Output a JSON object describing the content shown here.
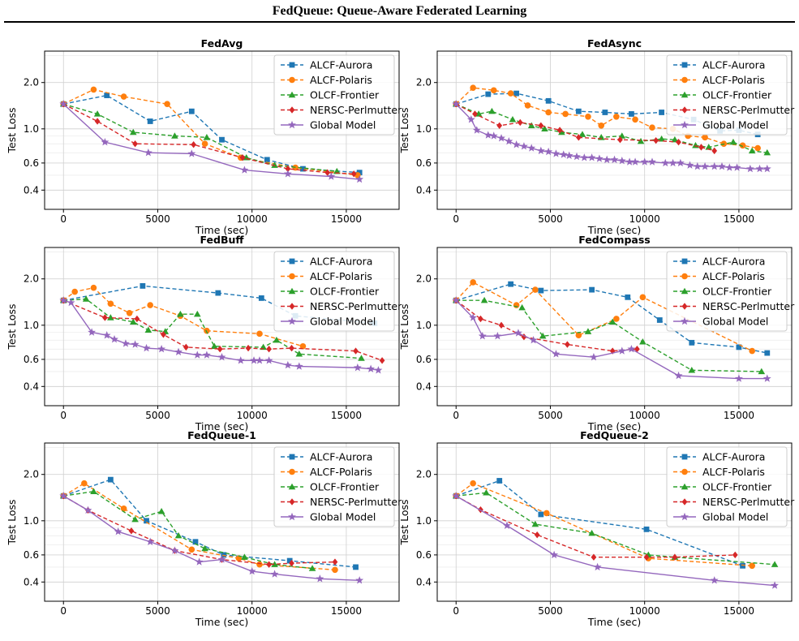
{
  "page": {
    "title": "FedQueue: Queue-Aware Federated Learning"
  },
  "caption": "",
  "legend_labels": [
    "ALCF-Aurora",
    "ALCF-Polaris",
    "OLCF-Frontier",
    "NERSC-Perlmutter",
    "Global Model"
  ],
  "series_style": [
    {
      "name": "ALCF-Aurora",
      "color": "#1f77b4",
      "marker": "square",
      "dash": true
    },
    {
      "name": "ALCF-Polaris",
      "color": "#ff7f0e",
      "marker": "circle",
      "dash": true
    },
    {
      "name": "OLCF-Frontier",
      "color": "#2ca02c",
      "marker": "triangle",
      "dash": true
    },
    {
      "name": "NERSC-Perlmutter",
      "color": "#d62728",
      "marker": "diamond",
      "dash": true
    },
    {
      "name": "Global Model",
      "color": "#9467bd",
      "marker": "star",
      "dash": false
    }
  ],
  "chart_data": [
    {
      "type": "line",
      "title": "FedAvg",
      "xlabel": "Time (sec)",
      "ylabel": "Test Loss",
      "xlim": [
        -1000,
        17800
      ],
      "ylim": [
        0.3,
        3.2
      ],
      "yscale": "log",
      "xticks": [
        0,
        5000,
        10000,
        15000
      ],
      "yticks": [
        0.4,
        0.6,
        1.0,
        2.0
      ],
      "ytick_labels": [
        "0.4",
        "0.6",
        "1.0",
        "2.0"
      ],
      "grid": true,
      "legend": "top-right",
      "series": [
        {
          "name": "ALCF-Aurora",
          "x": [
            0,
            2300,
            4600,
            6800,
            8400,
            10800,
            12700,
            15700
          ],
          "y": [
            1.45,
            1.65,
            1.12,
            1.3,
            0.85,
            0.63,
            0.55,
            0.52
          ]
        },
        {
          "name": "ALCF-Polaris",
          "x": [
            0,
            1600,
            3200,
            5500,
            7500,
            9400,
            12300,
            15600
          ],
          "y": [
            1.45,
            1.8,
            1.62,
            1.45,
            0.8,
            0.65,
            0.56,
            0.5
          ]
        },
        {
          "name": "OLCF-Frontier",
          "x": [
            0,
            1800,
            3700,
            5900,
            7600,
            9700,
            11200,
            14500
          ],
          "y": [
            1.45,
            1.25,
            0.95,
            0.9,
            0.88,
            0.65,
            0.58,
            0.53
          ]
        },
        {
          "name": "NERSC-Perlmutter",
          "x": [
            0,
            1800,
            3800,
            6900,
            9500,
            11900,
            14000,
            15400
          ],
          "y": [
            1.45,
            1.12,
            0.8,
            0.79,
            0.65,
            0.55,
            0.52,
            0.51
          ]
        },
        {
          "name": "Global Model",
          "x": [
            0,
            2200,
            4500,
            6800,
            9600,
            11900,
            14200,
            15700
          ],
          "y": [
            1.45,
            0.82,
            0.7,
            0.69,
            0.54,
            0.51,
            0.49,
            0.47
          ]
        }
      ]
    },
    {
      "type": "line",
      "title": "FedAsync",
      "xlabel": "Time (sec)",
      "ylabel": "Test Loss",
      "xlim": [
        -1000,
        17800
      ],
      "ylim": [
        0.3,
        3.2
      ],
      "yscale": "log",
      "xticks": [
        0,
        5000,
        10000,
        15000
      ],
      "yticks": [
        0.4,
        0.6,
        1.0,
        2.0
      ],
      "ytick_labels": [
        "0.4",
        "0.6",
        "1.0",
        "2.0"
      ],
      "grid": true,
      "legend": "top-right",
      "series": [
        {
          "name": "ALCF-Aurora",
          "x": [
            0,
            1700,
            3200,
            4900,
            6500,
            7900,
            9300,
            10900,
            12600,
            14000,
            15000,
            16000
          ],
          "y": [
            1.45,
            1.68,
            1.7,
            1.52,
            1.3,
            1.28,
            1.25,
            1.28,
            1.15,
            0.97,
            0.98,
            0.92
          ]
        },
        {
          "name": "ALCF-Polaris",
          "x": [
            0,
            900,
            2000,
            2900,
            3800,
            4900,
            5800,
            7000,
            7700,
            8500,
            9500,
            10400,
            11500,
            12300,
            13200,
            14200,
            15200,
            16000
          ],
          "y": [
            1.45,
            1.85,
            1.78,
            1.7,
            1.42,
            1.28,
            1.25,
            1.2,
            1.05,
            1.2,
            1.15,
            1.02,
            1.0,
            0.9,
            0.88,
            0.8,
            0.78,
            0.75
          ]
        },
        {
          "name": "OLCF-Frontier",
          "x": [
            0,
            1200,
            1900,
            3000,
            4000,
            4700,
            5600,
            6700,
            7700,
            8800,
            9800,
            10900,
            11600,
            12700,
            13400,
            14700,
            15700,
            16500
          ],
          "y": [
            1.45,
            1.25,
            1.3,
            1.15,
            1.05,
            1.0,
            0.95,
            0.92,
            0.88,
            0.9,
            0.83,
            0.86,
            0.85,
            0.78,
            0.76,
            0.82,
            0.72,
            0.7
          ]
        },
        {
          "name": "NERSC-Perlmutter",
          "x": [
            0,
            1000,
            2300,
            3400,
            4500,
            5500,
            6500,
            8700,
            10600,
            11800,
            13000,
            13700
          ],
          "y": [
            1.45,
            1.25,
            1.05,
            1.1,
            1.05,
            0.98,
            0.88,
            0.85,
            0.84,
            0.82,
            0.76,
            0.72
          ]
        },
        {
          "name": "Global Model",
          "x": [
            0,
            800,
            1100,
            1700,
            2000,
            2400,
            2800,
            3200,
            3600,
            4000,
            4500,
            4900,
            5300,
            5700,
            6000,
            6400,
            6800,
            7200,
            7600,
            8000,
            8400,
            8800,
            9200,
            9500,
            10000,
            10400,
            11100,
            11500,
            11900,
            12400,
            12800,
            13200,
            13700,
            14100,
            14500,
            14900,
            15600,
            16100,
            16500
          ],
          "y": [
            1.45,
            1.15,
            0.98,
            0.91,
            0.9,
            0.87,
            0.83,
            0.79,
            0.77,
            0.75,
            0.72,
            0.71,
            0.69,
            0.68,
            0.67,
            0.66,
            0.65,
            0.65,
            0.64,
            0.63,
            0.63,
            0.62,
            0.61,
            0.61,
            0.61,
            0.61,
            0.6,
            0.6,
            0.6,
            0.58,
            0.57,
            0.57,
            0.57,
            0.57,
            0.56,
            0.56,
            0.55,
            0.55,
            0.55
          ]
        }
      ]
    },
    {
      "type": "line",
      "title": "FedBuff",
      "xlabel": "Time (sec)",
      "ylabel": "Test Loss",
      "xlim": [
        -1000,
        17800
      ],
      "ylim": [
        0.3,
        3.2
      ],
      "yscale": "log",
      "xticks": [
        0,
        5000,
        10000,
        15000
      ],
      "yticks": [
        0.4,
        0.6,
        1.0,
        2.0
      ],
      "ytick_labels": [
        "0.4",
        "0.6",
        "1.0",
        "2.0"
      ],
      "grid": true,
      "legend": "top-right",
      "series": [
        {
          "name": "ALCF-Aurora",
          "x": [
            0,
            4200,
            8200,
            10500,
            12300,
            16500
          ],
          "y": [
            1.45,
            1.8,
            1.62,
            1.5,
            1.15,
            1.03
          ]
        },
        {
          "name": "ALCF-Polaris",
          "x": [
            0,
            600,
            1600,
            2500,
            3500,
            4600,
            6200,
            7600,
            10400,
            12700
          ],
          "y": [
            1.45,
            1.65,
            1.75,
            1.38,
            1.2,
            1.35,
            1.15,
            0.92,
            0.88,
            0.73
          ]
        },
        {
          "name": "OLCF-Frontier",
          "x": [
            0,
            1200,
            2500,
            3700,
            4500,
            5400,
            6200,
            7100,
            8000,
            10600,
            11300,
            12500,
            15800
          ],
          "y": [
            1.45,
            1.48,
            1.12,
            1.05,
            0.93,
            0.91,
            1.18,
            1.18,
            0.73,
            0.72,
            0.8,
            0.65,
            0.61
          ]
        },
        {
          "name": "NERSC-Perlmutter",
          "x": [
            0,
            2200,
            3900,
            5300,
            6500,
            8300,
            9800,
            10900,
            12100,
            15500,
            16900
          ],
          "y": [
            1.45,
            1.12,
            1.1,
            0.87,
            0.72,
            0.7,
            0.71,
            0.7,
            0.71,
            0.68,
            0.59
          ]
        },
        {
          "name": "Global Model",
          "x": [
            0,
            400,
            1500,
            2300,
            2700,
            3300,
            3800,
            4400,
            5200,
            6100,
            7100,
            7600,
            8400,
            9400,
            10100,
            10400,
            10900,
            11900,
            12500,
            15600,
            16300,
            16700
          ],
          "y": [
            1.45,
            1.4,
            0.9,
            0.86,
            0.81,
            0.76,
            0.75,
            0.71,
            0.7,
            0.67,
            0.64,
            0.64,
            0.62,
            0.59,
            0.59,
            0.59,
            0.59,
            0.55,
            0.54,
            0.53,
            0.52,
            0.51
          ]
        }
      ]
    },
    {
      "type": "line",
      "title": "FedCompass",
      "xlabel": "Time (sec)",
      "ylabel": "Test Loss",
      "xlim": [
        -1000,
        17800
      ],
      "ylim": [
        0.3,
        3.2
      ],
      "yscale": "log",
      "xticks": [
        0,
        5000,
        10000,
        15000
      ],
      "yticks": [
        0.4,
        0.6,
        1.0,
        2.0
      ],
      "ytick_labels": [
        "0.4",
        "0.6",
        "1.0",
        "2.0"
      ],
      "grid": true,
      "legend": "top-right",
      "series": [
        {
          "name": "ALCF-Aurora",
          "x": [
            0,
            2900,
            4500,
            7200,
            9100,
            10800,
            12500,
            15000,
            16500
          ],
          "y": [
            1.45,
            1.85,
            1.68,
            1.7,
            1.52,
            1.08,
            0.77,
            0.72,
            0.66
          ]
        },
        {
          "name": "ALCF-Polaris",
          "x": [
            0,
            900,
            3200,
            4200,
            6500,
            8500,
            9900,
            15700
          ],
          "y": [
            1.45,
            1.9,
            1.35,
            1.7,
            0.86,
            1.1,
            1.52,
            0.68
          ]
        },
        {
          "name": "OLCF-Frontier",
          "x": [
            0,
            1500,
            3500,
            4600,
            7000,
            8300,
            9900,
            12500,
            16200
          ],
          "y": [
            1.45,
            1.45,
            1.3,
            0.85,
            0.91,
            1.05,
            0.78,
            0.51,
            0.5
          ]
        },
        {
          "name": "NERSC-Perlmutter",
          "x": [
            0,
            1300,
            2400,
            3600,
            5900,
            8300,
            9600
          ],
          "y": [
            1.45,
            1.1,
            1.0,
            0.84,
            0.75,
            0.68,
            0.7
          ]
        },
        {
          "name": "Global Model",
          "x": [
            0,
            900,
            1400,
            2200,
            3300,
            4100,
            5300,
            7300,
            8800,
            9300,
            11800,
            15000,
            16500
          ],
          "y": [
            1.45,
            1.12,
            0.85,
            0.85,
            0.89,
            0.8,
            0.65,
            0.62,
            0.68,
            0.7,
            0.47,
            0.45,
            0.45
          ]
        }
      ]
    },
    {
      "type": "line",
      "title": "FedQueue-1",
      "xlabel": "Time (sec)",
      "ylabel": "Test Loss",
      "xlim": [
        -1000,
        17800
      ],
      "ylim": [
        0.3,
        3.2
      ],
      "yscale": "log",
      "xticks": [
        0,
        5000,
        10000,
        15000
      ],
      "yticks": [
        0.4,
        0.6,
        1.0,
        2.0
      ],
      "ytick_labels": [
        "0.4",
        "0.6",
        "1.0",
        "2.0"
      ],
      "grid": true,
      "legend": "top-right",
      "series": [
        {
          "name": "ALCF-Aurora",
          "x": [
            0,
            2500,
            4400,
            7000,
            8500,
            12000,
            15500
          ],
          "y": [
            1.45,
            1.85,
            1.0,
            0.73,
            0.6,
            0.55,
            0.5
          ]
        },
        {
          "name": "ALCF-Polaris",
          "x": [
            0,
            1100,
            3200,
            6800,
            9300,
            10400,
            14400
          ],
          "y": [
            1.45,
            1.75,
            1.2,
            0.65,
            0.57,
            0.52,
            0.48
          ]
        },
        {
          "name": "OLCF-Frontier",
          "x": [
            0,
            1600,
            3800,
            5200,
            6100,
            7500,
            9600,
            11200,
            13200
          ],
          "y": [
            1.45,
            1.55,
            1.02,
            1.15,
            0.8,
            0.66,
            0.58,
            0.52,
            0.49
          ]
        },
        {
          "name": "NERSC-Perlmutter",
          "x": [
            0,
            1300,
            3600,
            5900,
            8400,
            10900,
            12100,
            14400
          ],
          "y": [
            1.45,
            1.17,
            0.86,
            0.64,
            0.56,
            0.52,
            0.53,
            0.54
          ]
        },
        {
          "name": "Global Model",
          "x": [
            0,
            1300,
            2900,
            4600,
            5900,
            7200,
            8400,
            10000,
            11200,
            13600,
            15700
          ],
          "y": [
            1.45,
            1.17,
            0.85,
            0.73,
            0.64,
            0.54,
            0.56,
            0.47,
            0.45,
            0.42,
            0.41
          ]
        }
      ]
    },
    {
      "type": "line",
      "title": "FedQueue-2",
      "xlabel": "Time (sec)",
      "ylabel": "Test Loss",
      "xlim": [
        -1000,
        17800
      ],
      "ylim": [
        0.3,
        3.2
      ],
      "yscale": "log",
      "xticks": [
        0,
        5000,
        10000,
        15000
      ],
      "yticks": [
        0.4,
        0.6,
        1.0,
        2.0
      ],
      "ytick_labels": [
        "0.4",
        "0.6",
        "1.0",
        "2.0"
      ],
      "grid": true,
      "legend": "top-right",
      "series": [
        {
          "name": "ALCF-Aurora",
          "x": [
            0,
            2300,
            4500,
            10100,
            15200
          ],
          "y": [
            1.45,
            1.82,
            1.1,
            0.88,
            0.51
          ]
        },
        {
          "name": "ALCF-Polaris",
          "x": [
            0,
            900,
            4800,
            10200,
            15700
          ],
          "y": [
            1.45,
            1.75,
            1.12,
            0.57,
            0.51
          ]
        },
        {
          "name": "OLCF-Frontier",
          "x": [
            0,
            1600,
            4200,
            7200,
            10200,
            11600,
            16900
          ],
          "y": [
            1.45,
            1.52,
            0.95,
            0.83,
            0.6,
            0.58,
            0.52
          ]
        },
        {
          "name": "NERSC-Perlmutter",
          "x": [
            0,
            1300,
            4300,
            7300,
            10100,
            11600,
            14800
          ],
          "y": [
            1.45,
            1.18,
            0.81,
            0.58,
            0.58,
            0.58,
            0.6
          ]
        },
        {
          "name": "Global Model",
          "x": [
            0,
            2700,
            5200,
            7500,
            13700,
            16900
          ],
          "y": [
            1.45,
            0.93,
            0.6,
            0.5,
            0.41,
            0.38
          ]
        }
      ]
    }
  ]
}
